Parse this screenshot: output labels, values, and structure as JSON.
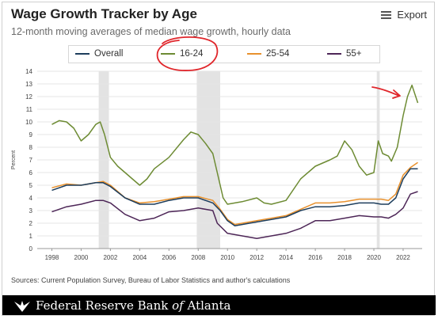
{
  "header": {
    "title": "Wage Growth Tracker by Age",
    "subtitle": "12-month moving averages of median wage growth, hourly data",
    "export_label": "Export",
    "export_icon": "menu-icon"
  },
  "source": "Sources: Current Population Survey, Bureau of Labor Statistics and author's calculations",
  "footer": {
    "brand_pre": "Federal Reserve Bank ",
    "brand_of": "of",
    "brand_post": " Atlanta"
  },
  "annotations": {
    "circle_color": "#e0262b",
    "arrow_color": "#e0262b"
  },
  "chart_data": {
    "type": "line",
    "title": "Wage Growth Tracker by Age",
    "ylabel": "Percent",
    "ylim": [
      0,
      14
    ],
    "xlim": [
      1997,
      2023.3
    ],
    "grid": true,
    "legend_position": "top",
    "x_ticks": [
      "1998",
      "2000",
      "2002",
      "2004",
      "2006",
      "2008",
      "2010",
      "2012",
      "2014",
      "2016",
      "2018",
      "2020",
      "2022"
    ],
    "y_ticks": [
      "0",
      "1",
      "2",
      "3",
      "4",
      "5",
      "6",
      "7",
      "8",
      "9",
      "10",
      "11",
      "12",
      "13",
      "14"
    ],
    "recessions": [
      [
        2001.2,
        2001.9
      ],
      [
        2007.9,
        2009.5
      ],
      [
        2020.2,
        2020.4
      ]
    ],
    "series": [
      {
        "name": "Overall",
        "color": "#1d3d5c",
        "points": [
          [
            1998,
            4.6
          ],
          [
            1999,
            5.0
          ],
          [
            2000,
            5.0
          ],
          [
            2001,
            5.2
          ],
          [
            2001.5,
            5.2
          ],
          [
            2002,
            4.9
          ],
          [
            2003,
            4.0
          ],
          [
            2004,
            3.5
          ],
          [
            2005,
            3.5
          ],
          [
            2006,
            3.8
          ],
          [
            2007,
            4.0
          ],
          [
            2008,
            4.0
          ],
          [
            2009,
            3.6
          ],
          [
            2009.5,
            3.0
          ],
          [
            2010,
            2.2
          ],
          [
            2010.5,
            1.8
          ],
          [
            2011,
            1.9
          ],
          [
            2012,
            2.1
          ],
          [
            2013,
            2.3
          ],
          [
            2014,
            2.5
          ],
          [
            2015,
            3.0
          ],
          [
            2016,
            3.3
          ],
          [
            2017,
            3.3
          ],
          [
            2018,
            3.4
          ],
          [
            2019,
            3.6
          ],
          [
            2020,
            3.6
          ],
          [
            2020.5,
            3.5
          ],
          [
            2021,
            3.5
          ],
          [
            2021.5,
            4.0
          ],
          [
            2022,
            5.5
          ],
          [
            2022.5,
            6.3
          ],
          [
            2023,
            6.3
          ]
        ]
      },
      {
        "name": "16-24",
        "color": "#6d8b33",
        "points": [
          [
            1998,
            9.8
          ],
          [
            1998.5,
            10.1
          ],
          [
            1999,
            10.0
          ],
          [
            1999.5,
            9.5
          ],
          [
            2000,
            8.5
          ],
          [
            2000.5,
            9.0
          ],
          [
            2001,
            9.8
          ],
          [
            2001.3,
            10.0
          ],
          [
            2001.6,
            9.0
          ],
          [
            2002,
            7.2
          ],
          [
            2002.5,
            6.5
          ],
          [
            2003,
            6.0
          ],
          [
            2003.5,
            5.5
          ],
          [
            2004,
            5.0
          ],
          [
            2004.5,
            5.5
          ],
          [
            2005,
            6.3
          ],
          [
            2006,
            7.2
          ],
          [
            2007,
            8.6
          ],
          [
            2007.5,
            9.2
          ],
          [
            2008,
            9.0
          ],
          [
            2008.5,
            8.3
          ],
          [
            2009,
            7.5
          ],
          [
            2009.3,
            6.0
          ],
          [
            2009.7,
            4.0
          ],
          [
            2010,
            3.5
          ],
          [
            2011,
            3.7
          ],
          [
            2012,
            4.0
          ],
          [
            2012.5,
            3.6
          ],
          [
            2013,
            3.5
          ],
          [
            2014,
            3.8
          ],
          [
            2015,
            5.5
          ],
          [
            2016,
            6.5
          ],
          [
            2017,
            7.0
          ],
          [
            2017.5,
            7.3
          ],
          [
            2018,
            8.5
          ],
          [
            2018.5,
            7.8
          ],
          [
            2019,
            6.5
          ],
          [
            2019.5,
            5.8
          ],
          [
            2020,
            6.0
          ],
          [
            2020.3,
            8.5
          ],
          [
            2020.6,
            7.5
          ],
          [
            2021,
            7.3
          ],
          [
            2021.2,
            6.9
          ],
          [
            2021.6,
            8.0
          ],
          [
            2022,
            10.5
          ],
          [
            2022.3,
            12.0
          ],
          [
            2022.6,
            12.9
          ],
          [
            2022.8,
            12.2
          ],
          [
            2023,
            11.5
          ]
        ]
      },
      {
        "name": "25-54",
        "color": "#e8912d",
        "points": [
          [
            1998,
            4.8
          ],
          [
            1999,
            5.1
          ],
          [
            2000,
            5.0
          ],
          [
            2001,
            5.2
          ],
          [
            2001.5,
            5.3
          ],
          [
            2002,
            5.0
          ],
          [
            2003,
            4.0
          ],
          [
            2004,
            3.6
          ],
          [
            2005,
            3.7
          ],
          [
            2006,
            3.9
          ],
          [
            2007,
            4.1
          ],
          [
            2008,
            4.1
          ],
          [
            2009,
            3.8
          ],
          [
            2009.5,
            3.1
          ],
          [
            2010,
            2.3
          ],
          [
            2010.5,
            1.9
          ],
          [
            2011,
            2.0
          ],
          [
            2012,
            2.2
          ],
          [
            2013,
            2.4
          ],
          [
            2014,
            2.6
          ],
          [
            2015,
            3.1
          ],
          [
            2016,
            3.6
          ],
          [
            2017,
            3.6
          ],
          [
            2018,
            3.7
          ],
          [
            2019,
            3.9
          ],
          [
            2020,
            3.9
          ],
          [
            2020.5,
            3.9
          ],
          [
            2021,
            3.8
          ],
          [
            2021.5,
            4.3
          ],
          [
            2022,
            5.8
          ],
          [
            2022.5,
            6.4
          ],
          [
            2023,
            6.8
          ]
        ]
      },
      {
        "name": "55+",
        "color": "#4d2657",
        "points": [
          [
            1998,
            2.9
          ],
          [
            1999,
            3.3
          ],
          [
            2000,
            3.5
          ],
          [
            2001,
            3.8
          ],
          [
            2001.5,
            3.8
          ],
          [
            2002,
            3.6
          ],
          [
            2003,
            2.7
          ],
          [
            2004,
            2.2
          ],
          [
            2005,
            2.4
          ],
          [
            2006,
            2.9
          ],
          [
            2007,
            3.0
          ],
          [
            2008,
            3.2
          ],
          [
            2009,
            3.0
          ],
          [
            2009.3,
            2.0
          ],
          [
            2010,
            1.2
          ],
          [
            2011,
            1.0
          ],
          [
            2012,
            0.8
          ],
          [
            2013,
            1.0
          ],
          [
            2014,
            1.2
          ],
          [
            2015,
            1.6
          ],
          [
            2016,
            2.2
          ],
          [
            2017,
            2.2
          ],
          [
            2018,
            2.4
          ],
          [
            2019,
            2.6
          ],
          [
            2020,
            2.5
          ],
          [
            2020.5,
            2.5
          ],
          [
            2021,
            2.4
          ],
          [
            2021.5,
            2.7
          ],
          [
            2022,
            3.2
          ],
          [
            2022.5,
            4.3
          ],
          [
            2023,
            4.5
          ]
        ]
      }
    ]
  }
}
